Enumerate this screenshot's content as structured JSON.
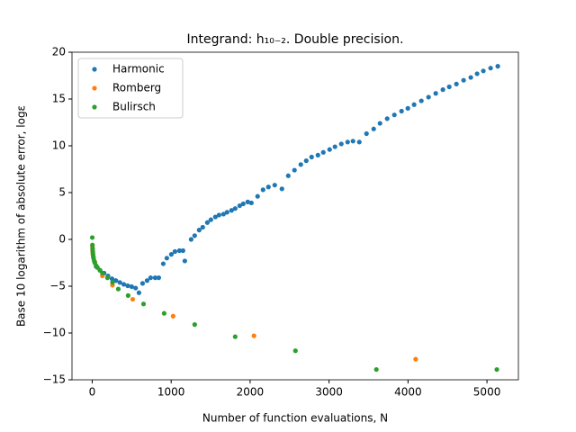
{
  "chart_data": {
    "type": "scatter",
    "title": "Integrand: h₁₀₋₂. Double precision.",
    "x_label": "Number of function evaluations, N",
    "y_label": "Base 10 logarithm of absolute error, logε",
    "xlim": [
      -256,
      5398
    ],
    "ylim": [
      -15,
      20
    ],
    "xticks": [
      0,
      1000,
      2000,
      3000,
      4000,
      5000
    ],
    "yticks": [
      {
        "value": -15,
        "label": "−15"
      },
      {
        "value": -10,
        "label": "−10"
      },
      {
        "value": -5,
        "label": "−5"
      },
      0,
      5,
      10,
      15,
      20
    ],
    "legend": "upper left",
    "series": [
      {
        "name": "Harmonic",
        "color": "#1f77b4",
        "x": [
          50,
          100,
          150,
          200,
          250,
          300,
          350,
          400,
          450,
          500,
          550,
          592,
          638,
          695,
          740,
          797,
          843,
          900,
          945,
          1002,
          1048,
          1105,
          1150,
          1173,
          1253,
          1298,
          1355,
          1400,
          1458,
          1503,
          1560,
          1606,
          1663,
          1708,
          1765,
          1811,
          1868,
          1913,
          1970,
          2016,
          2095,
          2164,
          2232,
          2312,
          2403,
          2483,
          2562,
          2642,
          2711,
          2779,
          2859,
          2927,
          3007,
          3075,
          3155,
          3235,
          3303,
          3383,
          3474,
          3565,
          3645,
          3736,
          3827,
          3918,
          3998,
          4077,
          4169,
          4260,
          4351,
          4442,
          4522,
          4613,
          4704,
          4795,
          4875,
          4954,
          5046,
          5137
        ],
        "values": [
          -2.9,
          -3.3,
          -3.6,
          -3.9,
          -4.2,
          -4.4,
          -4.6,
          -4.8,
          -4.95,
          -5.05,
          -5.2,
          -5.7,
          -4.7,
          -4.4,
          -4.1,
          -4.1,
          -4.1,
          -2.6,
          -2.0,
          -1.6,
          -1.3,
          -1.2,
          -1.2,
          -2.3,
          0,
          0.4,
          1.0,
          1.3,
          1.8,
          2.1,
          2.4,
          2.6,
          2.7,
          2.9,
          3.1,
          3.3,
          3.6,
          3.8,
          4.0,
          3.9,
          4.6,
          5.3,
          5.6,
          5.8,
          5.4,
          6.8,
          7.4,
          8.0,
          8.4,
          8.8,
          9.0,
          9.3,
          9.6,
          9.9,
          10.2,
          10.4,
          10.5,
          10.4,
          11.3,
          11.8,
          12.4,
          12.9,
          13.3,
          13.7,
          14.0,
          14.4,
          14.8,
          15.2,
          15.6,
          16.0,
          16.3,
          16.6,
          17.0,
          17.3,
          17.7,
          18.0,
          18.3,
          18.5
        ]
      },
      {
        "name": "Romberg",
        "color": "#ff7f0e",
        "x": [
          3,
          5,
          9,
          17,
          33,
          65,
          129,
          257,
          513,
          1025,
          2049,
          4097
        ],
        "values": [
          -0.8,
          -1.2,
          -1.6,
          -2.0,
          -2.4,
          -3.0,
          -3.9,
          -4.9,
          -6.4,
          -8.2,
          -10.3,
          -12.8
        ]
      },
      {
        "name": "Bulirsch",
        "color": "#2ca02c",
        "x": [
          1,
          3,
          5,
          7,
          9,
          13,
          17,
          25,
          33,
          49,
          65,
          97,
          129,
          193,
          257,
          330,
          455,
          650,
          911,
          1298,
          1811,
          2574,
          3599,
          5125
        ],
        "values": [
          0.2,
          -0.6,
          -1.0,
          -1.3,
          -1.5,
          -1.8,
          -2.0,
          -2.3,
          -2.5,
          -2.8,
          -3.0,
          -3.3,
          -3.6,
          -4.1,
          -4.6,
          -5.3,
          -6.0,
          -6.9,
          -7.9,
          -9.1,
          -10.4,
          -11.9,
          -13.9,
          -13.9
        ]
      }
    ]
  }
}
